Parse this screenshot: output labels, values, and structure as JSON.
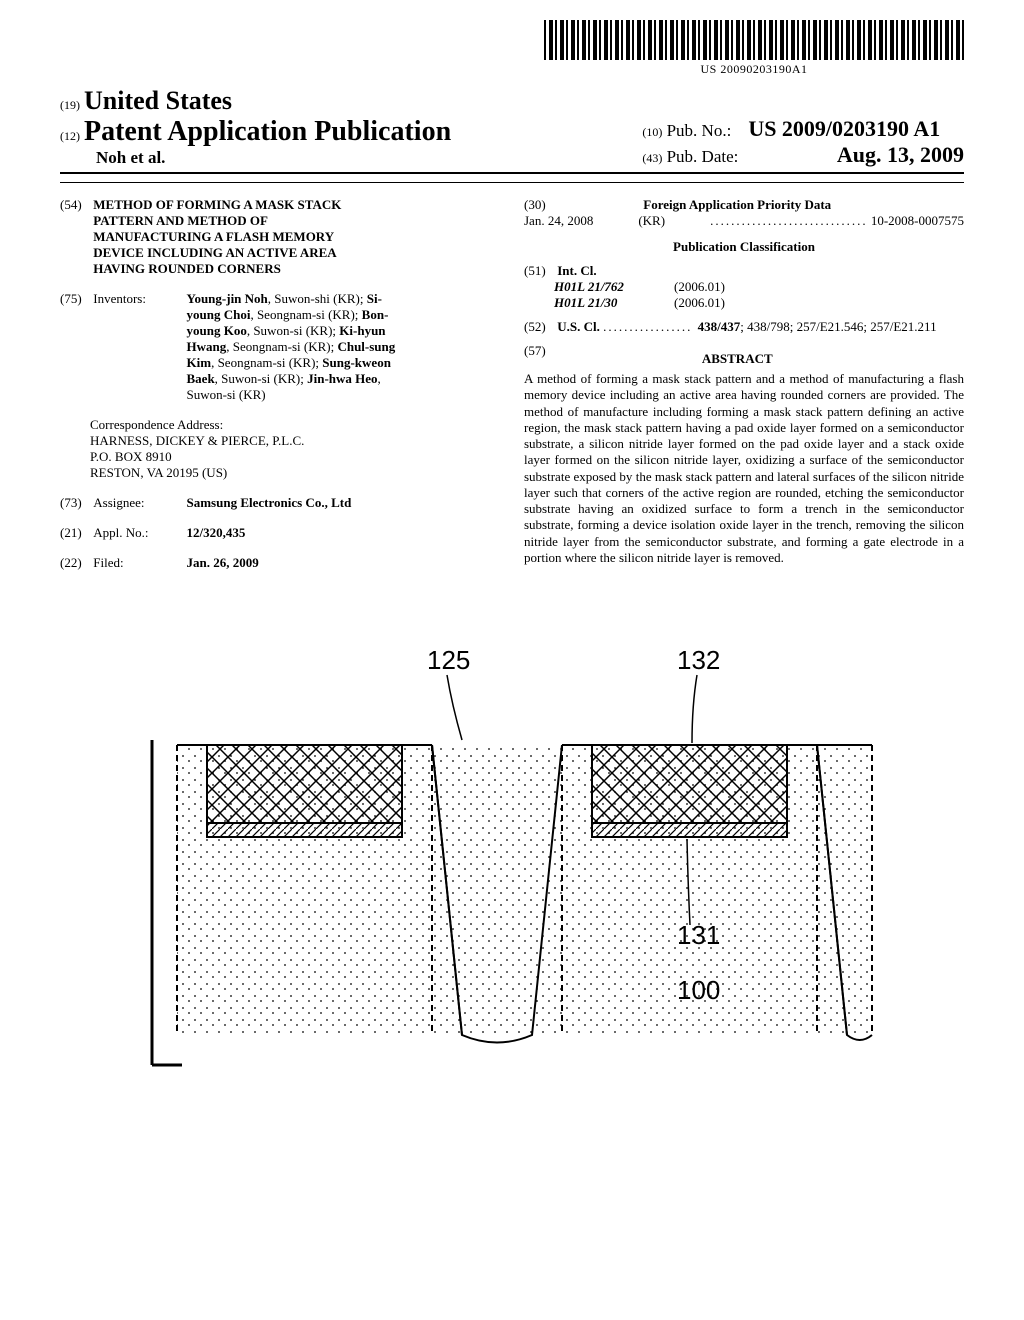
{
  "barcode_number": "US 20090203190A1",
  "header": {
    "country_prefix": "(19)",
    "country": "United States",
    "pub_type_prefix": "(12)",
    "pub_type": "Patent Application Publication",
    "authors": "Noh et al.",
    "pubno_prefix": "(10)",
    "pubno_label": "Pub. No.:",
    "pubno": "US 2009/0203190 A1",
    "pubdate_prefix": "(43)",
    "pubdate_label": "Pub. Date:",
    "pubdate": "Aug. 13, 2009"
  },
  "title": {
    "prefix": "(54)",
    "text": "METHOD OF FORMING A MASK STACK PATTERN AND METHOD OF MANUFACTURING A FLASH MEMORY DEVICE INCLUDING AN ACTIVE AREA HAVING ROUNDED CORNERS"
  },
  "inventors": {
    "prefix": "(75)",
    "label": "Inventors:",
    "list": [
      {
        "name": "Young-jin Noh",
        "loc": "Suwon-shi (KR)"
      },
      {
        "name": "Si-young Choi",
        "loc": "Seongnam-si (KR)"
      },
      {
        "name": "Bon-young Koo",
        "loc": "Suwon-si (KR)"
      },
      {
        "name": "Ki-hyun Hwang",
        "loc": "Seongnam-si (KR)"
      },
      {
        "name": "Chul-sung Kim",
        "loc": "Seongnam-si (KR)"
      },
      {
        "name": "Sung-kweon Baek",
        "loc": "Suwon-si (KR)"
      },
      {
        "name": "Jin-hwa Heo",
        "loc": "Suwon-si (KR)"
      }
    ]
  },
  "correspondence": {
    "label": "Correspondence Address:",
    "lines": [
      "HARNESS, DICKEY & PIERCE, P.L.C.",
      "P.O. BOX 8910",
      "RESTON, VA 20195 (US)"
    ]
  },
  "assignee": {
    "prefix": "(73)",
    "label": "Assignee:",
    "value": "Samsung Electronics Co., Ltd"
  },
  "applno": {
    "prefix": "(21)",
    "label": "Appl. No.:",
    "value": "12/320,435"
  },
  "filed": {
    "prefix": "(22)",
    "label": "Filed:",
    "value": "Jan. 26, 2009"
  },
  "foreign": {
    "prefix": "(30)",
    "heading": "Foreign Application Priority Data",
    "date": "Jan. 24, 2008",
    "country": "(KR)",
    "number": "10-2008-0007575"
  },
  "classification_heading": "Publication Classification",
  "intcl": {
    "prefix": "(51)",
    "label": "Int. Cl.",
    "rows": [
      {
        "code": "H01L 21/762",
        "year": "(2006.01)"
      },
      {
        "code": "H01L 21/30",
        "year": "(2006.01)"
      }
    ]
  },
  "uscl": {
    "prefix": "(52)",
    "label": "U.S. Cl.",
    "value": "438/437; 438/798; 257/E21.546; 257/E21.211"
  },
  "abstract": {
    "prefix": "(57)",
    "heading": "ABSTRACT",
    "text": "A method of forming a mask stack pattern and a method of manufacturing a flash memory device including an active area having rounded corners are provided. The method of manufacture including forming a mask stack pattern defining an active region, the mask stack pattern having a pad oxide layer formed on a semiconductor substrate, a silicon nitride layer formed on the pad oxide layer and a stack oxide layer formed on the silicon nitride layer, oxidizing a surface of the semiconductor substrate exposed by the mask stack pattern and lateral surfaces of the silicon nitride layer such that corners of the active region are rounded, etching the semiconductor substrate having an oxidized surface to form a trench in the semiconductor substrate, forming a device isolation oxide layer in the trench, removing the silicon nitride layer from the semiconductor substrate, and forming a gate electrode in a portion where the silicon nitride layer is removed."
  },
  "figure": {
    "labels": {
      "l125": "125",
      "l132": "132",
      "l131": "131",
      "l100": "100"
    },
    "colors": {
      "line": "#000000",
      "bg": "#ffffff"
    },
    "hatch_angle": 45
  }
}
